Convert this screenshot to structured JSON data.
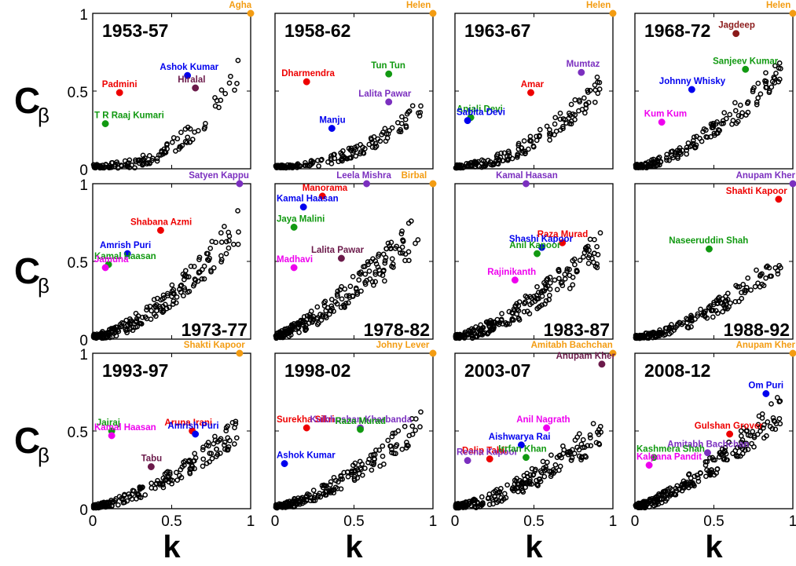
{
  "figure": {
    "ylabel_main": "C",
    "ylabel_sub": "β",
    "xlabel": "k",
    "x_ticks": [
      "0",
      "0.5",
      "1"
    ],
    "y_ticks": [
      "0",
      "0.5",
      "1"
    ]
  },
  "chart_data": [
    {
      "type": "scatter",
      "title": "1953-57",
      "title_pos": "top-left",
      "xlim": [
        0,
        1
      ],
      "ylim": [
        0,
        1
      ],
      "points_seed": 11,
      "points_count": 120,
      "curve": {
        "a": 0.75,
        "p": 2.6,
        "spread": 0.07
      },
      "labeled": [
        {
          "name": "Agha",
          "x": 1.0,
          "y": 1.0,
          "color": "#f39c12"
        },
        {
          "name": "Ashok Kumar",
          "x": 0.6,
          "y": 0.6,
          "color": "#0000ee"
        },
        {
          "name": "Padmini",
          "x": 0.17,
          "y": 0.49,
          "color": "#ee0000"
        },
        {
          "name": "Hiralal",
          "x": 0.65,
          "y": 0.52,
          "color": "#6b1a4a"
        },
        {
          "name": "T R Raaj Kumari",
          "x": 0.08,
          "y": 0.29,
          "color": "#119911"
        }
      ]
    },
    {
      "type": "scatter",
      "title": "1958-62",
      "title_pos": "top-left",
      "xlim": [
        0,
        1
      ],
      "ylim": [
        0,
        1
      ],
      "points_seed": 23,
      "points_count": 150,
      "curve": {
        "a": 0.45,
        "p": 2.2,
        "spread": 0.05
      },
      "labeled": [
        {
          "name": "Helen",
          "x": 1.0,
          "y": 1.0,
          "color": "#f39c12"
        },
        {
          "name": "Dharmendra",
          "x": 0.2,
          "y": 0.56,
          "color": "#ee0000"
        },
        {
          "name": "Tun Tun",
          "x": 0.72,
          "y": 0.61,
          "color": "#119911"
        },
        {
          "name": "Lalita Pawar",
          "x": 0.72,
          "y": 0.43,
          "color": "#7b2fbf"
        },
        {
          "name": "Manju",
          "x": 0.36,
          "y": 0.26,
          "color": "#0000ee"
        }
      ]
    },
    {
      "type": "scatter",
      "title": "1963-67",
      "title_pos": "top-left",
      "xlim": [
        0,
        1
      ],
      "ylim": [
        0,
        1
      ],
      "points_seed": 37,
      "points_count": 160,
      "curve": {
        "a": 0.6,
        "p": 1.9,
        "spread": 0.07
      },
      "labeled": [
        {
          "name": "Helen",
          "x": 1.0,
          "y": 1.0,
          "color": "#f39c12"
        },
        {
          "name": "Mumtaz",
          "x": 0.8,
          "y": 0.62,
          "color": "#7b2fbf"
        },
        {
          "name": "Amar",
          "x": 0.48,
          "y": 0.49,
          "color": "#ee0000"
        },
        {
          "name": "Anjali Devi",
          "x": 0.1,
          "y": 0.33,
          "color": "#119911"
        },
        {
          "name": "Sabita Devi",
          "x": 0.08,
          "y": 0.31,
          "color": "#0000ee"
        }
      ]
    },
    {
      "type": "scatter",
      "title": "1968-72",
      "title_pos": "top-left",
      "xlim": [
        0,
        1
      ],
      "ylim": [
        0,
        1
      ],
      "points_seed": 41,
      "points_count": 170,
      "curve": {
        "a": 0.7,
        "p": 1.6,
        "spread": 0.08
      },
      "labeled": [
        {
          "name": "Helen",
          "x": 1.0,
          "y": 1.0,
          "color": "#f39c12"
        },
        {
          "name": "Jagdeep",
          "x": 0.64,
          "y": 0.87,
          "color": "#8b1a1a"
        },
        {
          "name": "Sanjeev Kumar",
          "x": 0.7,
          "y": 0.64,
          "color": "#119911"
        },
        {
          "name": "Johnny Whisky",
          "x": 0.36,
          "y": 0.51,
          "color": "#0000ee"
        },
        {
          "name": "Kum Kum",
          "x": 0.17,
          "y": 0.3,
          "color": "#ee00ee"
        }
      ]
    },
    {
      "type": "scatter",
      "title": "1973-77",
      "title_pos": "bottom-right",
      "xlim": [
        0,
        1
      ],
      "ylim": [
        0,
        1
      ],
      "points_seed": 53,
      "points_count": 200,
      "curve": {
        "a": 0.8,
        "p": 1.6,
        "spread": 0.1
      },
      "labeled": [
        {
          "name": "Satyen Kappu",
          "x": 0.93,
          "y": 1.0,
          "color": "#7b2fbf"
        },
        {
          "name": "Shabana Azmi",
          "x": 0.43,
          "y": 0.7,
          "color": "#ee0000"
        },
        {
          "name": "Amrish Puri",
          "x": 0.22,
          "y": 0.55,
          "color": "#0000ee"
        },
        {
          "name": "Kamal Haasan",
          "x": 0.1,
          "y": 0.48,
          "color": "#119911"
        },
        {
          "name": "Jamuna",
          "x": 0.08,
          "y": 0.46,
          "color": "#ee00ee"
        }
      ]
    },
    {
      "type": "scatter",
      "title": "1978-82",
      "title_pos": "bottom-right",
      "xlim": [
        0,
        1
      ],
      "ylim": [
        0,
        1
      ],
      "points_seed": 61,
      "points_count": 210,
      "curve": {
        "a": 0.75,
        "p": 1.3,
        "spread": 0.12
      },
      "labeled": [
        {
          "name": "Birbal",
          "x": 1.0,
          "y": 1.0,
          "color": "#f39c12"
        },
        {
          "name": "Leela Mishra",
          "x": 0.58,
          "y": 1.0,
          "color": "#7b2fbf"
        },
        {
          "name": "Manorama",
          "x": 0.3,
          "y": 0.92,
          "color": "#ee0000"
        },
        {
          "name": "Kamal Haasan",
          "x": 0.18,
          "y": 0.85,
          "color": "#0000ee"
        },
        {
          "name": "Jaya Malini",
          "x": 0.12,
          "y": 0.72,
          "color": "#119911"
        },
        {
          "name": "Lalita Pawar",
          "x": 0.42,
          "y": 0.52,
          "color": "#6b1a4a"
        },
        {
          "name": "Madhavi",
          "x": 0.12,
          "y": 0.46,
          "color": "#ee00ee"
        }
      ]
    },
    {
      "type": "scatter",
      "title": "1983-87",
      "title_pos": "bottom-right",
      "xlim": [
        0,
        1
      ],
      "ylim": [
        0,
        1
      ],
      "points_seed": 71,
      "points_count": 230,
      "curve": {
        "a": 0.65,
        "p": 1.5,
        "spread": 0.1
      },
      "labeled": [
        {
          "name": "Kamal Haasan",
          "x": 0.45,
          "y": 1.0,
          "color": "#7b2fbf"
        },
        {
          "name": "Raza Murad",
          "x": 0.68,
          "y": 0.62,
          "color": "#ee0000"
        },
        {
          "name": "Shashi Kapoor",
          "x": 0.55,
          "y": 0.59,
          "color": "#0000ee"
        },
        {
          "name": "Anil Kapoor",
          "x": 0.52,
          "y": 0.55,
          "color": "#119911"
        },
        {
          "name": "Rajinikanth",
          "x": 0.38,
          "y": 0.38,
          "color": "#ee00ee"
        }
      ]
    },
    {
      "type": "scatter",
      "title": "1988-92",
      "title_pos": "bottom-right",
      "xlim": [
        0,
        1
      ],
      "ylim": [
        0,
        1
      ],
      "points_seed": 83,
      "points_count": 180,
      "curve": {
        "a": 0.55,
        "p": 1.6,
        "spread": 0.07
      },
      "labeled": [
        {
          "name": "Anupam Kher",
          "x": 1.0,
          "y": 1.0,
          "color": "#7b2fbf"
        },
        {
          "name": "Shakti Kapoor",
          "x": 0.91,
          "y": 0.9,
          "color": "#ee0000"
        },
        {
          "name": "Naseeruddin Shah",
          "x": 0.47,
          "y": 0.58,
          "color": "#119911"
        }
      ]
    },
    {
      "type": "scatter",
      "title": "1993-97",
      "title_pos": "top-left",
      "xlim": [
        0,
        1
      ],
      "ylim": [
        0,
        1
      ],
      "points_seed": 97,
      "points_count": 180,
      "curve": {
        "a": 0.55,
        "p": 1.5,
        "spread": 0.07
      },
      "labeled": [
        {
          "name": "Shakti Kapoor",
          "x": 0.93,
          "y": 1.0,
          "color": "#f39c12"
        },
        {
          "name": "Aruna Irani",
          "x": 0.63,
          "y": 0.5,
          "color": "#ee0000"
        },
        {
          "name": "Amrish Puri",
          "x": 0.65,
          "y": 0.48,
          "color": "#0000ee"
        },
        {
          "name": "Jairaj",
          "x": 0.12,
          "y": 0.5,
          "color": "#119911"
        },
        {
          "name": "Kamal Haasan",
          "x": 0.12,
          "y": 0.47,
          "color": "#ee00ee"
        },
        {
          "name": "Tabu",
          "x": 0.37,
          "y": 0.27,
          "color": "#6b1a4a"
        }
      ]
    },
    {
      "type": "scatter",
      "title": "1998-02",
      "title_pos": "top-left",
      "xlim": [
        0,
        1
      ],
      "ylim": [
        0,
        1
      ],
      "points_seed": 101,
      "points_count": 190,
      "curve": {
        "a": 0.6,
        "p": 1.5,
        "spread": 0.08
      },
      "labeled": [
        {
          "name": "Johny Lever",
          "x": 1.0,
          "y": 1.0,
          "color": "#f39c12"
        },
        {
          "name": "Surekha Sikri",
          "x": 0.2,
          "y": 0.52,
          "color": "#ee0000"
        },
        {
          "name": "Kulbhushan Kharbanda",
          "x": 0.54,
          "y": 0.52,
          "color": "#7b2fbf"
        },
        {
          "name": "Raza Murad",
          "x": 0.54,
          "y": 0.51,
          "color": "#119911"
        },
        {
          "name": "Ashok Kumar",
          "x": 0.06,
          "y": 0.29,
          "color": "#0000ee"
        }
      ]
    },
    {
      "type": "scatter",
      "title": "2003-07",
      "title_pos": "top-left",
      "xlim": [
        0,
        1
      ],
      "ylim": [
        0,
        1
      ],
      "points_seed": 113,
      "points_count": 220,
      "curve": {
        "a": 0.55,
        "p": 1.6,
        "spread": 0.09
      },
      "labeled": [
        {
          "name": "Amitabh Bachchan",
          "x": 1.0,
          "y": 1.0,
          "color": "#f39c12"
        },
        {
          "name": "Anupam Kher",
          "x": 0.93,
          "y": 0.93,
          "color": "#6b1a4a"
        },
        {
          "name": "Anil Nagrath",
          "x": 0.58,
          "y": 0.52,
          "color": "#ee00ee"
        },
        {
          "name": "Aishwarya Rai",
          "x": 0.42,
          "y": 0.41,
          "color": "#0000ee"
        },
        {
          "name": "Dalip Tahil",
          "x": 0.22,
          "y": 0.32,
          "color": "#ee0000"
        },
        {
          "name": "Reena Kapoor",
          "x": 0.08,
          "y": 0.31,
          "color": "#7b2fbf"
        },
        {
          "name": "Irrfan Khan",
          "x": 0.45,
          "y": 0.33,
          "color": "#119911"
        }
      ]
    },
    {
      "type": "scatter",
      "title": "2008-12",
      "title_pos": "top-left",
      "xlim": [
        0,
        1
      ],
      "ylim": [
        0,
        1
      ],
      "points_seed": 127,
      "points_count": 230,
      "curve": {
        "a": 0.7,
        "p": 1.4,
        "spread": 0.09
      },
      "labeled": [
        {
          "name": "Anupam Kher",
          "x": 1.0,
          "y": 1.0,
          "color": "#f39c12"
        },
        {
          "name": "Om Puri",
          "x": 0.83,
          "y": 0.74,
          "color": "#0000ee"
        },
        {
          "name": "Gulshan Grover",
          "x": 0.6,
          "y": 0.48,
          "color": "#ee0000"
        },
        {
          "name": "Amitabh Bachchan",
          "x": 0.46,
          "y": 0.36,
          "color": "#7b2fbf"
        },
        {
          "name": "Kashmera Shah",
          "x": 0.12,
          "y": 0.33,
          "color": "#119911"
        },
        {
          "name": "Kalpana Pandit",
          "x": 0.09,
          "y": 0.28,
          "color": "#ee00ee"
        }
      ]
    }
  ]
}
